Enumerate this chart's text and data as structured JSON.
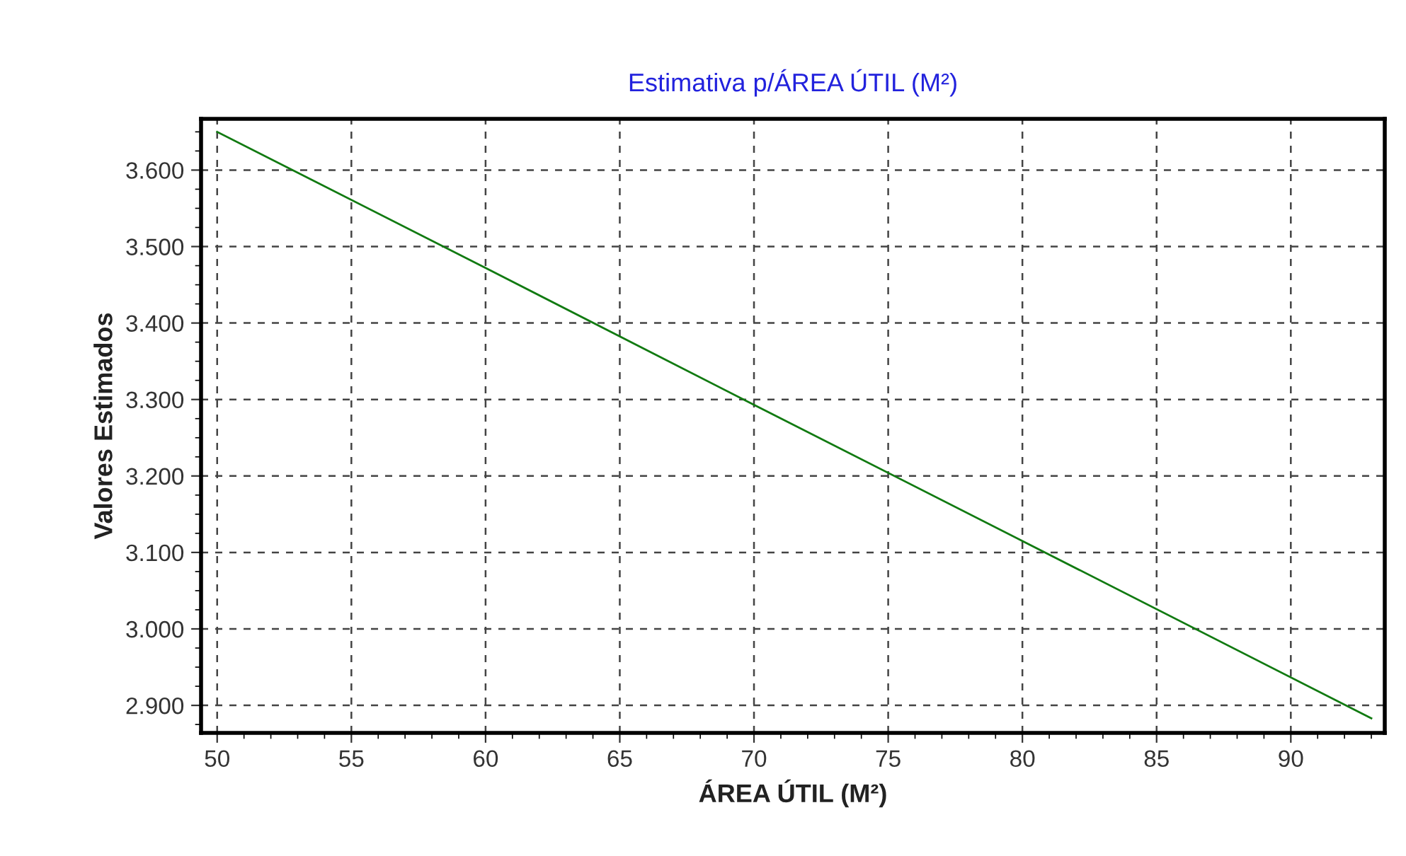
{
  "chart_data": {
    "type": "line",
    "title": "Estimativa p/ÁREA ÚTIL (M²)",
    "xlabel": "ÁREA ÚTIL (M²)",
    "ylabel": "Valores Estimados",
    "x": [
      50,
      60,
      70,
      80,
      93
    ],
    "series": [
      {
        "color": "#117a11",
        "values": [
          3650,
          3472,
          3293,
          3115,
          2883
        ]
      }
    ],
    "xlim": [
      49.4,
      93.5
    ],
    "xticks": [
      50,
      55,
      60,
      65,
      70,
      75,
      80,
      85,
      90
    ],
    "ylim": [
      2864,
      3667
    ],
    "yticks": [
      {
        "value": 2900,
        "label": "2.900"
      },
      {
        "value": 3000,
        "label": "3.000"
      },
      {
        "value": 3100,
        "label": "3.100"
      },
      {
        "value": 3200,
        "label": "3.200"
      },
      {
        "value": 3300,
        "label": "3.300"
      },
      {
        "value": 3400,
        "label": "3.400"
      },
      {
        "value": 3500,
        "label": "3.500"
      },
      {
        "value": 3600,
        "label": "3.600"
      }
    ],
    "grid": true,
    "marker": "none",
    "line_style": "solid"
  }
}
